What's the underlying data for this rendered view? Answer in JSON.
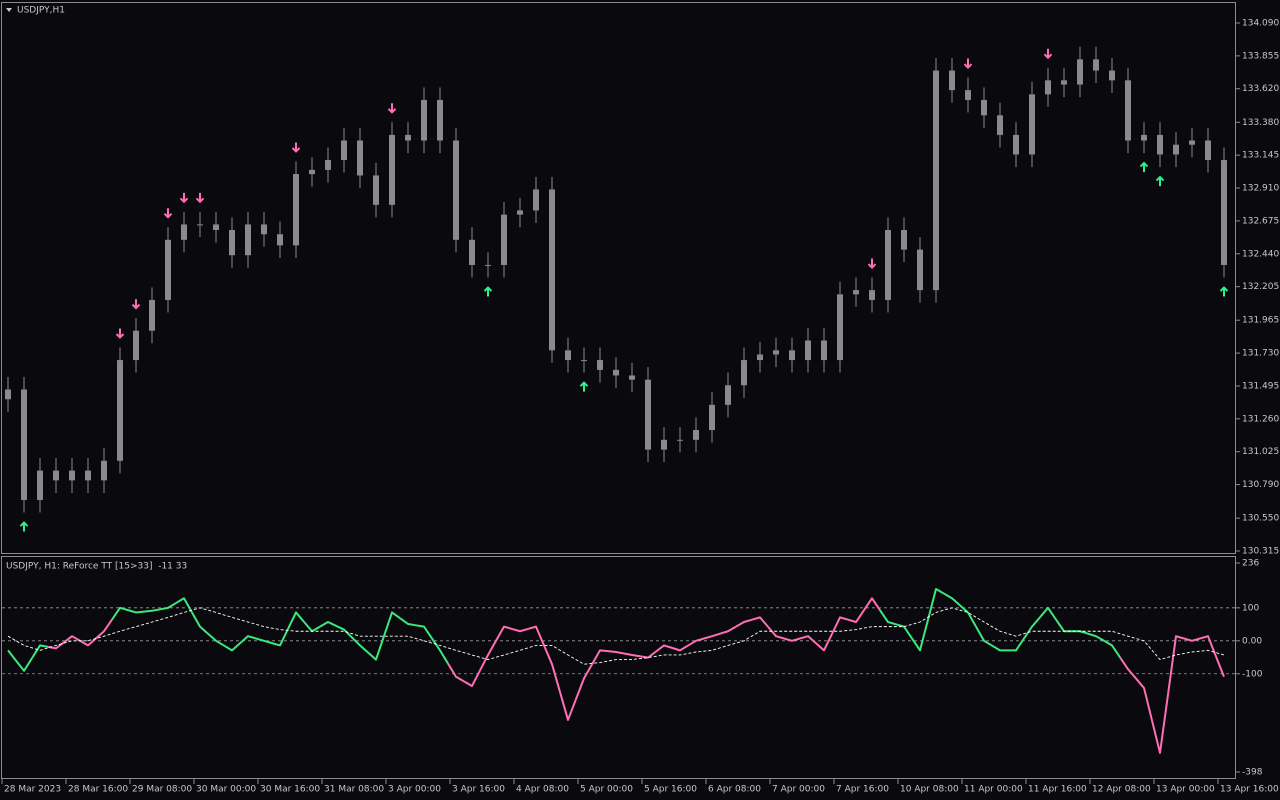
{
  "chart_data": [
    {
      "type": "candlestick",
      "title": "USDJPY,H1",
      "color": "#8a8a8a",
      "up_arrow_color": "#2ef28c",
      "down_arrow_color": "#ff6eb4",
      "open": [
        131.4,
        131.47,
        130.68,
        130.89,
        130.82,
        130.89,
        130.82,
        130.96,
        131.68,
        131.89,
        132.11,
        132.54,
        132.65,
        132.65,
        132.61,
        132.43,
        132.65,
        132.58,
        132.5,
        133.01,
        133.04,
        133.11,
        133.25,
        133.0,
        132.79,
        133.29,
        133.25,
        133.54,
        133.25,
        132.54,
        132.36,
        132.36,
        132.72,
        132.75,
        132.9,
        131.75,
        131.68,
        131.68,
        131.61,
        131.57,
        131.54,
        131.04,
        131.11,
        131.11,
        131.18,
        131.36,
        131.5,
        131.68,
        131.72,
        131.75,
        131.68,
        131.82,
        131.68,
        132.15,
        132.18,
        132.11,
        132.61,
        132.47,
        132.18,
        133.75,
        133.61,
        133.54,
        133.43,
        133.29,
        133.15,
        133.58,
        133.68,
        133.65,
        133.83,
        133.75,
        133.68,
        133.25,
        133.29,
        133.15,
        133.22,
        133.25,
        133.11
      ],
      "high": [
        131.56,
        131.56,
        130.98,
        130.98,
        130.98,
        130.98,
        131.05,
        131.77,
        131.98,
        132.2,
        132.63,
        132.74,
        132.74,
        132.74,
        132.7,
        132.74,
        132.74,
        132.67,
        133.1,
        133.13,
        133.2,
        133.34,
        133.34,
        133.09,
        133.38,
        133.38,
        133.63,
        133.63,
        133.34,
        132.63,
        132.45,
        132.81,
        132.84,
        132.99,
        132.99,
        131.84,
        131.77,
        131.77,
        131.7,
        131.66,
        131.63,
        131.2,
        131.2,
        131.27,
        131.45,
        131.59,
        131.77,
        131.81,
        131.84,
        131.84,
        131.91,
        131.91,
        132.24,
        132.27,
        132.27,
        132.7,
        132.7,
        132.56,
        133.84,
        133.84,
        133.7,
        133.63,
        133.52,
        133.38,
        133.67,
        133.77,
        133.77,
        133.92,
        133.92,
        133.84,
        133.77,
        133.38,
        133.38,
        133.31,
        133.34,
        133.34,
        133.2
      ],
      "low": [
        131.31,
        130.59,
        130.59,
        130.73,
        130.73,
        130.73,
        130.73,
        130.87,
        131.59,
        131.8,
        132.02,
        132.45,
        132.56,
        132.52,
        132.34,
        132.34,
        132.49,
        132.41,
        132.41,
        132.92,
        132.95,
        133.02,
        132.91,
        132.7,
        132.7,
        133.16,
        133.16,
        133.16,
        132.45,
        132.27,
        132.27,
        132.27,
        132.63,
        132.66,
        131.66,
        131.59,
        131.59,
        131.52,
        131.48,
        131.45,
        130.95,
        130.95,
        131.02,
        131.02,
        131.09,
        131.27,
        131.41,
        131.59,
        131.63,
        131.59,
        131.59,
        131.59,
        131.59,
        132.06,
        132.02,
        132.02,
        132.38,
        132.09,
        132.09,
        133.52,
        133.45,
        133.34,
        133.2,
        133.06,
        133.06,
        133.49,
        133.56,
        133.56,
        133.66,
        133.59,
        133.16,
        133.16,
        133.06,
        133.06,
        133.13,
        133.02,
        132.27
      ],
      "close": [
        131.47,
        130.68,
        130.89,
        130.82,
        130.89,
        130.82,
        130.96,
        131.68,
        131.89,
        132.11,
        132.54,
        132.65,
        132.65,
        132.61,
        132.43,
        132.65,
        132.58,
        132.5,
        133.01,
        133.04,
        133.11,
        133.25,
        133.0,
        132.79,
        133.29,
        133.25,
        133.54,
        133.25,
        132.54,
        132.36,
        132.36,
        132.72,
        132.75,
        132.9,
        131.75,
        131.68,
        131.68,
        131.61,
        131.57,
        131.54,
        131.04,
        131.11,
        131.11,
        131.18,
        131.36,
        131.5,
        131.68,
        131.72,
        131.75,
        131.68,
        131.82,
        131.68,
        132.15,
        132.18,
        132.11,
        132.61,
        132.47,
        132.18,
        133.75,
        133.61,
        133.54,
        133.43,
        133.29,
        133.15,
        133.58,
        133.68,
        133.65,
        133.83,
        133.75,
        133.68,
        133.25,
        133.29,
        133.15,
        133.22,
        133.25,
        133.11,
        132.36
      ],
      "down_arrows": [
        7,
        8,
        10,
        11,
        12,
        18,
        24,
        54,
        60,
        65
      ],
      "up_arrows": [
        1,
        30,
        36,
        71,
        72,
        76
      ],
      "ylim": [
        130.315,
        134.09
      ],
      "yticks": [
        {
          "value": 134.09,
          "label": "134.090"
        },
        133.855,
        {
          "value": 133.62,
          "label": "133.620"
        },
        {
          "value": 133.38,
          "label": "133.380"
        },
        133.145,
        {
          "value": 132.91,
          "label": "132.910"
        },
        132.675,
        {
          "value": 132.44,
          "label": "132.440"
        },
        132.205,
        131.965,
        {
          "value": 131.73,
          "label": "131.730"
        },
        131.495,
        {
          "value": 131.26,
          "label": "131.260"
        },
        131.025,
        {
          "value": 130.79,
          "label": "130.790"
        },
        {
          "value": 130.55,
          "label": "130.550"
        },
        130.315
      ]
    },
    {
      "type": "line",
      "title": "USDJPY, H1: ReForce TT [15>33]  -11 33",
      "values": [
        -29,
        -91,
        -14,
        -23,
        14,
        -14,
        29,
        100,
        86,
        91,
        100,
        129,
        43,
        0,
        -29,
        14,
        0,
        -14,
        86,
        29,
        57,
        34,
        -14,
        -57,
        86,
        51,
        43,
        -29,
        -109,
        -137,
        -43,
        43,
        29,
        43,
        -71,
        -240,
        -114,
        -29,
        -34,
        -43,
        -51,
        -14,
        -29,
        0,
        14,
        29,
        57,
        71,
        14,
        0,
        14,
        -29,
        71,
        57,
        129,
        57,
        43,
        -29,
        157,
        129,
        86,
        0,
        -29,
        -29,
        43,
        100,
        29,
        29,
        14,
        -14,
        -86,
        -143,
        -340,
        14,
        0,
        14,
        -109
      ],
      "segment_colors": [
        "#3be87e",
        "#3be87e",
        "#3be87e",
        "#ff6eb4",
        "#ff6eb4",
        "#ff6eb4",
        "#ff6eb4",
        "#3be87e",
        "#3be87e",
        "#3be87e",
        "#3be87e",
        "#3be87e",
        "#3be87e",
        "#3be87e",
        "#3be87e",
        "#3be87e",
        "#3be87e",
        "#3be87e",
        "#3be87e",
        "#3be87e",
        "#3be87e",
        "#3be87e",
        "#3be87e",
        "#3be87e",
        "#3be87e",
        "#3be87e",
        "#3be87e",
        "#3be87e",
        "#ff6eb4",
        "#ff6eb4",
        "#ff6eb4",
        "#ff6eb4",
        "#ff6eb4",
        "#ff6eb4",
        "#ff6eb4",
        "#ff6eb4",
        "#ff6eb4",
        "#ff6eb4",
        "#ff6eb4",
        "#ff6eb4",
        "#ff6eb4",
        "#ff6eb4",
        "#ff6eb4",
        "#ff6eb4",
        "#ff6eb4",
        "#ff6eb4",
        "#ff6eb4",
        "#ff6eb4",
        "#ff6eb4",
        "#ff6eb4",
        "#ff6eb4",
        "#ff6eb4",
        "#ff6eb4",
        "#ff6eb4",
        "#ff6eb4",
        "#3be87e",
        "#3be87e",
        "#3be87e",
        "#3be87e",
        "#3be87e",
        "#3be87e",
        "#3be87e",
        "#3be87e",
        "#3be87e",
        "#3be87e",
        "#3be87e",
        "#3be87e",
        "#3be87e",
        "#3be87e",
        "#3be87e",
        "#ff6eb4",
        "#ff6eb4",
        "#ff6eb4",
        "#ff6eb4",
        "#ff6eb4",
        "#ff6eb4",
        "#ff6eb4"
      ],
      "signal": {
        "color": "#ffffff",
        "values": [
          14,
          -14,
          -29,
          -14,
          0,
          0,
          14,
          29,
          43,
          57,
          71,
          86,
          100,
          86,
          71,
          57,
          43,
          34,
          29,
          29,
          29,
          29,
          14,
          14,
          14,
          14,
          0,
          -14,
          -29,
          -43,
          -57,
          -43,
          -29,
          -14,
          -14,
          -43,
          -71,
          -66,
          -57,
          -57,
          -51,
          -43,
          -43,
          -34,
          -29,
          -14,
          0,
          29,
          29,
          29,
          29,
          29,
          29,
          34,
          43,
          43,
          43,
          57,
          86,
          100,
          86,
          57,
          29,
          14,
          29,
          29,
          29,
          29,
          29,
          29,
          14,
          0,
          -57,
          -43,
          -34,
          -29,
          -43
        ]
      },
      "levels": [
        100,
        0,
        -100
      ],
      "ylim": [
        -398,
        236
      ],
      "yticks": [
        236,
        100,
        {
          "value": 0,
          "label": "0.00"
        },
        -100,
        -398
      ],
      "x_labels": [
        "28 Mar 2023",
        "28 Mar 16:00",
        "29 Mar 08:00",
        "30 Mar 00:00",
        "30 Mar 16:00",
        "31 Mar 08:00",
        "3 Apr 00:00",
        "3 Apr 16:00",
        "4 Apr 08:00",
        "5 Apr 00:00",
        "5 Apr 16:00",
        "6 Apr 08:00",
        "7 Apr 00:00",
        "7 Apr 16:00",
        "10 Apr 08:00",
        "11 Apr 00:00",
        "11 Apr 16:00",
        "12 Apr 08:00",
        "13 Apr 00:00",
        "13 Apr 16:00"
      ]
    }
  ]
}
